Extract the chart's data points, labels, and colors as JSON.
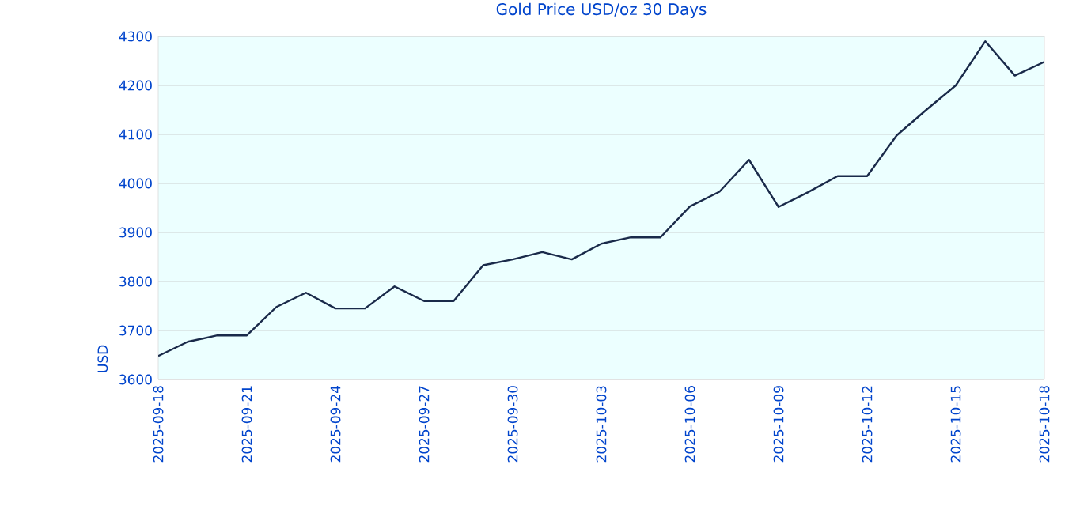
{
  "chart_data": {
    "type": "line",
    "title": "Gold Price USD/oz 30 Days",
    "ylabel": "USD",
    "x": [
      "2025-09-18",
      "2025-09-19",
      "2025-09-20",
      "2025-09-21",
      "2025-09-22",
      "2025-09-23",
      "2025-09-24",
      "2025-09-25",
      "2025-09-26",
      "2025-09-27",
      "2025-09-28",
      "2025-09-29",
      "2025-09-30",
      "2025-10-01",
      "2025-10-02",
      "2025-10-03",
      "2025-10-04",
      "2025-10-05",
      "2025-10-06",
      "2025-10-07",
      "2025-10-08",
      "2025-10-09",
      "2025-10-10",
      "2025-10-11",
      "2025-10-12",
      "2025-10-13",
      "2025-10-14",
      "2025-10-15",
      "2025-10-16",
      "2025-10-17",
      "2025-10-18"
    ],
    "series": [
      {
        "color": "#1a2a4a",
        "values": [
          3648,
          3677,
          3690,
          3690,
          3748,
          3777,
          3745,
          3745,
          3790,
          3760,
          3760,
          3833,
          3845,
          3860,
          3845,
          3877,
          3890,
          3890,
          3953,
          3983,
          4048,
          3952,
          3982,
          4015,
          4015,
          4098,
          4150,
          4200,
          4290,
          4220,
          4248
        ]
      }
    ],
    "xlim": [
      "2025-09-18",
      "2025-10-18"
    ],
    "xticks": [
      "2025-09-18",
      "2025-09-21",
      "2025-09-24",
      "2025-09-27",
      "2025-09-30",
      "2025-10-03",
      "2025-10-06",
      "2025-10-09",
      "2025-10-12",
      "2025-10-15",
      "2025-10-18"
    ],
    "ylim": [
      3600,
      4300
    ],
    "yticks": [
      3600,
      3700,
      3800,
      3900,
      4000,
      4100,
      4200,
      4300
    ],
    "grid": "y",
    "marker": "none",
    "line_style": "solid"
  }
}
